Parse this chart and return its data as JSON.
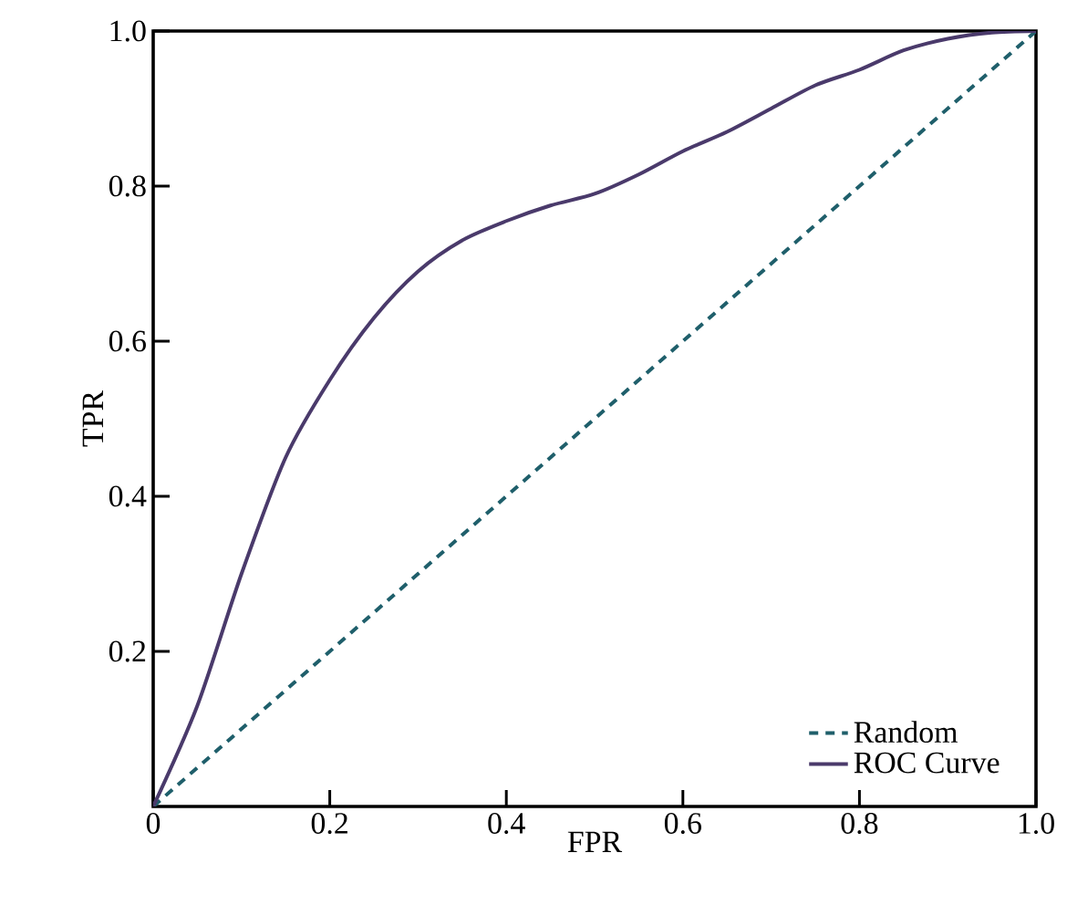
{
  "chart_data": {
    "type": "line",
    "xlabel": "FPR",
    "ylabel": "TPR",
    "xlim": [
      0,
      1
    ],
    "ylim": [
      0,
      1
    ],
    "xticks": [
      0,
      0.2,
      0.4,
      0.6,
      0.8,
      {
        "value": 1,
        "label": "1.0"
      }
    ],
    "yticks": [
      0.2,
      0.4,
      0.6,
      0.8,
      {
        "value": 1,
        "label": "1.0"
      }
    ],
    "legend": "bottom right",
    "marker": "none",
    "series": [
      {
        "name": "Random",
        "color": "#1f5f6b",
        "line_style": "dashed",
        "x": [
          0,
          1
        ],
        "values": [
          0,
          1
        ]
      },
      {
        "name": "ROC Curve",
        "color": "#4a3a6b",
        "line_style": "solid",
        "x": [
          0,
          0.05,
          0.1,
          0.15,
          0.2,
          0.25,
          0.3,
          0.35,
          0.4,
          0.45,
          0.5,
          0.55,
          0.6,
          0.65,
          0.7,
          0.75,
          0.8,
          0.85,
          0.9,
          0.95,
          1
        ],
        "values": [
          0,
          0.13,
          0.3,
          0.45,
          0.55,
          0.63,
          0.69,
          0.73,
          0.755,
          0.775,
          0.79,
          0.815,
          0.845,
          0.87,
          0.9,
          0.93,
          0.95,
          0.975,
          0.99,
          0.998,
          1
        ]
      }
    ]
  }
}
